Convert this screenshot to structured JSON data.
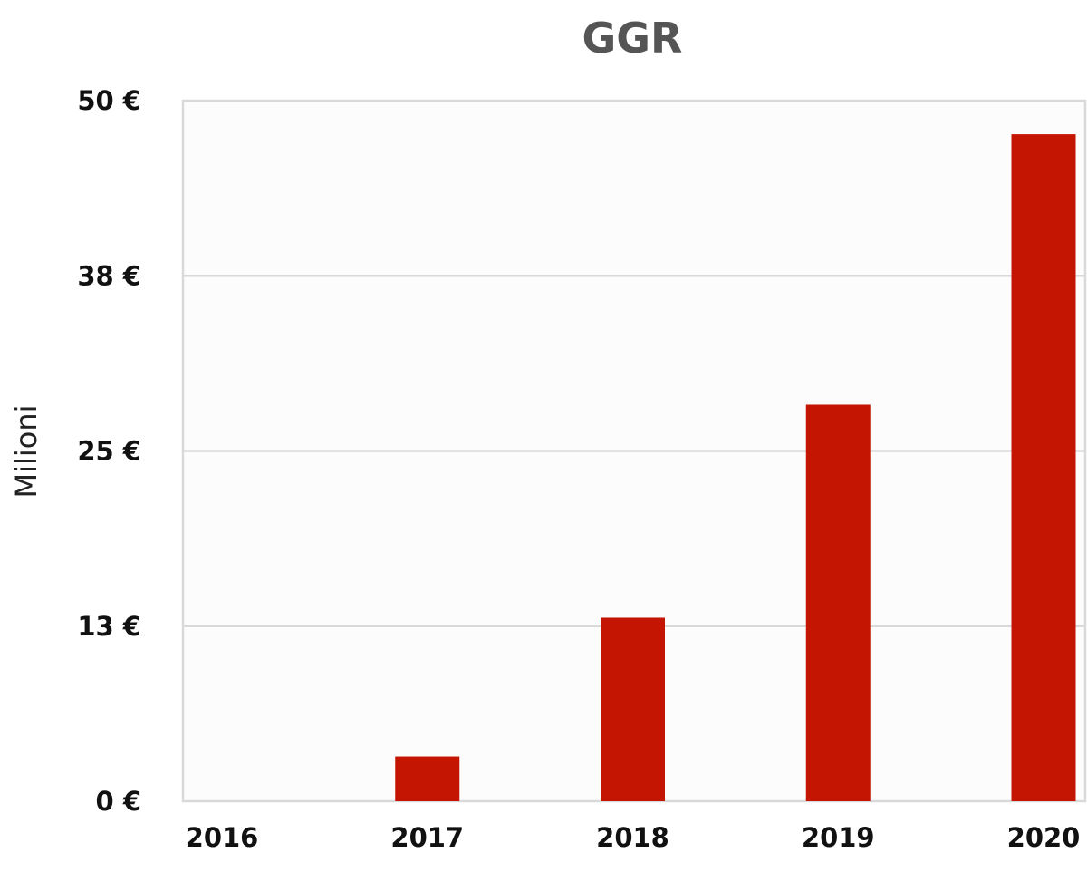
{
  "chart_data": {
    "type": "bar",
    "title": "GGR",
    "ylabel": "Milioni",
    "xlabel": "",
    "categories": [
      "2016",
      "2017",
      "2018",
      "2019",
      "2020"
    ],
    "values": [
      0,
      3.2,
      13.1,
      28.3,
      47.6
    ],
    "ylim": [
      0,
      50
    ],
    "yticks": [
      0,
      12.5,
      25,
      37.5,
      50
    ],
    "ytick_labels": [
      "0 €",
      "13 €",
      "25 €",
      "38 €",
      "50 €"
    ],
    "grid": true,
    "bar_color": "#c41502",
    "gridline_color": "#d9d9d9"
  }
}
